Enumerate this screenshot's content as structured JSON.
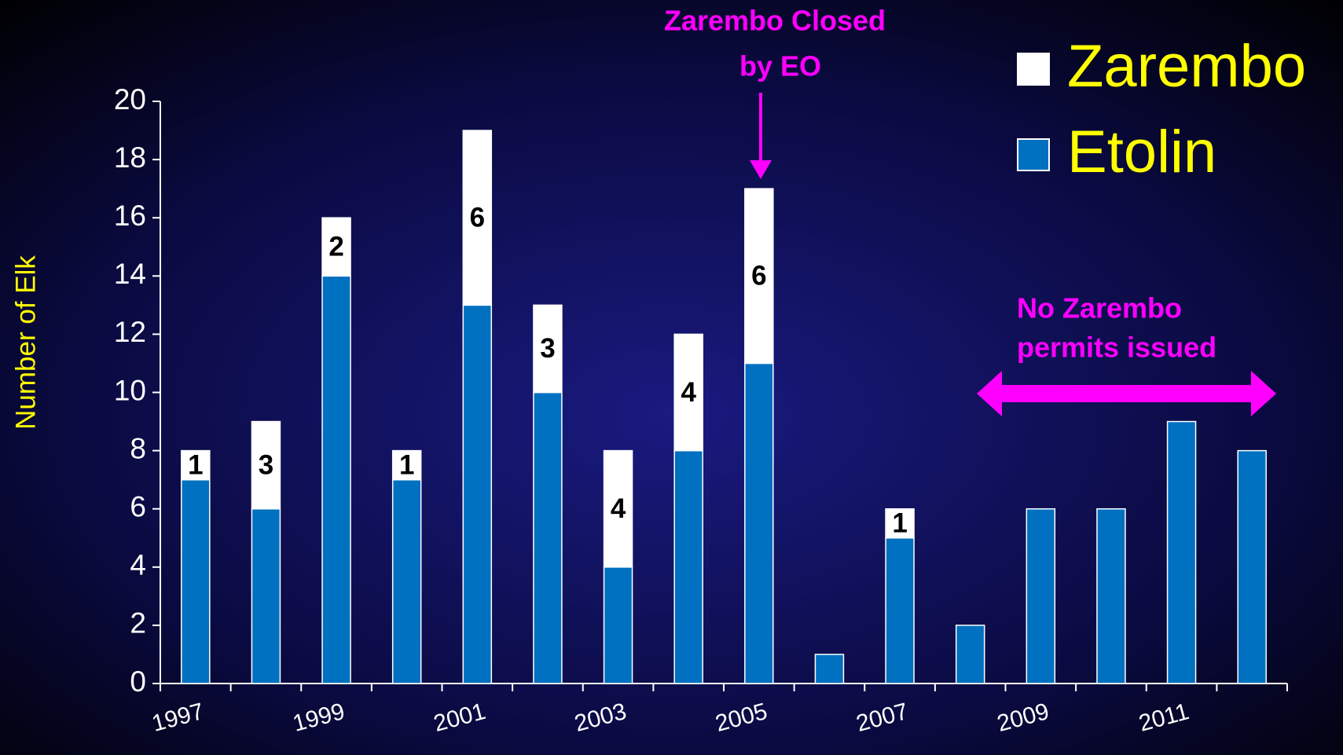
{
  "chart_data": {
    "type": "stacked_bar",
    "y_label": "Number of Elk",
    "categories": [
      "1997",
      null,
      "1999",
      null,
      "2001",
      null,
      "2003",
      null,
      "2005",
      null,
      "2007",
      null,
      "2009",
      null,
      "2011",
      null
    ],
    "series": [
      {
        "name": "Etolin",
        "color": "#0070c0",
        "values": [
          7,
          6,
          14,
          7,
          13,
          10,
          4,
          8,
          11,
          1,
          5,
          2,
          6,
          6,
          9,
          8
        ]
      },
      {
        "name": "Zarembo",
        "color": "#ffffff",
        "values": [
          1,
          3,
          2,
          1,
          6,
          3,
          4,
          4,
          6,
          0,
          1,
          0,
          0,
          0,
          0,
          0
        ]
      }
    ],
    "ylim": [
      0,
      20
    ],
    "yticks": [
      0,
      2,
      4,
      6,
      8,
      10,
      12,
      14,
      16,
      18,
      20
    ],
    "annotations": [
      "Zarembo Closed",
      "by EO",
      "No Zarembo",
      "permits issued"
    ]
  }
}
